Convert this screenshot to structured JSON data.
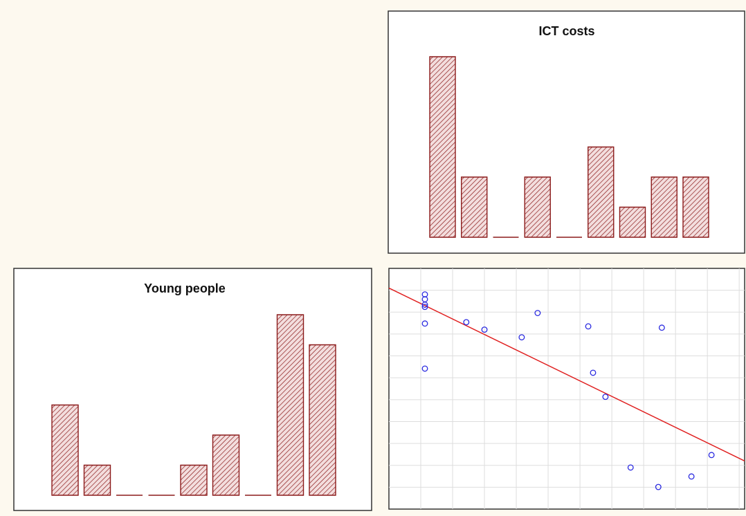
{
  "chart_data": [
    {
      "type": "histogram",
      "title": "ICT costs",
      "categories": [
        null,
        null,
        null,
        null,
        null,
        null,
        null,
        null,
        null
      ],
      "values": [
        6,
        2,
        0,
        2,
        0,
        3,
        1,
        2,
        2
      ],
      "color": "#8b1a1a",
      "ylim": [
        0,
        7
      ]
    },
    {
      "type": "histogram",
      "title": "Young people",
      "categories": [
        null,
        null,
        null,
        null,
        null,
        null,
        null,
        null,
        null
      ],
      "values": [
        3,
        1,
        0,
        0,
        1,
        2,
        0,
        6,
        5
      ],
      "color": "#8b1a1a",
      "ylim": [
        0,
        7
      ]
    },
    {
      "type": "scatter",
      "color": "#2a2ae0",
      "line_color": "#e02020",
      "grid": true,
      "x": [
        1.13,
        1.13,
        1.13,
        1.13,
        1.13,
        1.13,
        2.43,
        3.0,
        4.17,
        4.67,
        6.26,
        6.41,
        6.8,
        8.57,
        7.59,
        8.46,
        9.5,
        10.13
      ],
      "values": [
        9.81,
        9.59,
        9.34,
        9.24,
        8.48,
        6.42,
        8.54,
        8.2,
        7.85,
        8.96,
        8.35,
        6.23,
        5.13,
        8.29,
        1.9,
        1.01,
        1.49,
        2.47
      ],
      "trend_line": {
        "x": [
          0,
          11.17
        ],
        "y": [
          10.1,
          2.2
        ]
      },
      "xlim": [
        0,
        11.17
      ],
      "ylim": [
        0,
        11
      ],
      "xticks": [
        1,
        2,
        3,
        4,
        5,
        6,
        7,
        8,
        9,
        10,
        11
      ],
      "yticks": [
        1,
        2,
        3,
        4,
        5,
        6,
        7,
        8,
        9,
        10
      ]
    }
  ]
}
